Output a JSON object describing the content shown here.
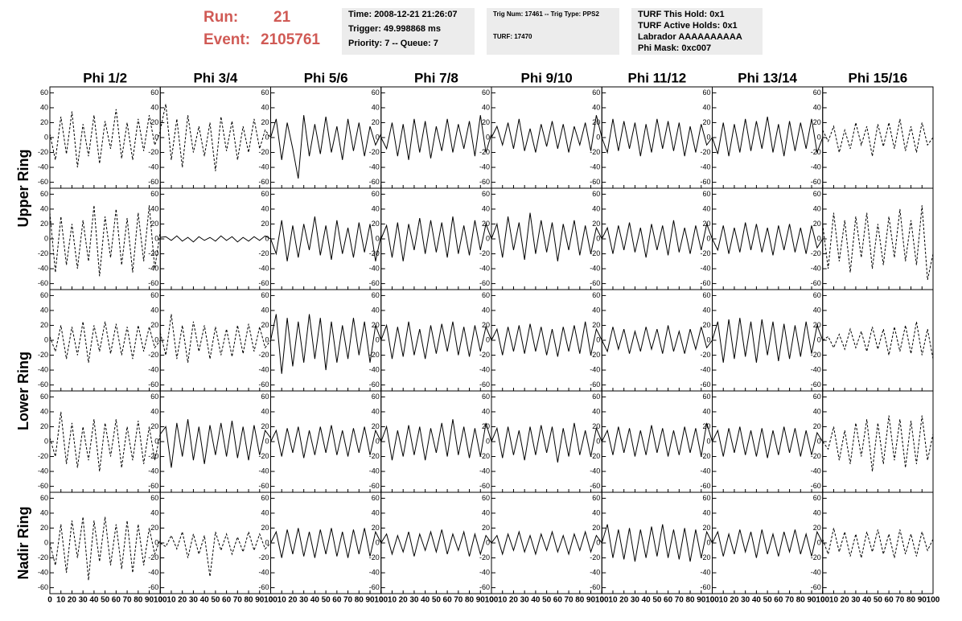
{
  "header": {
    "run_label": "Run:",
    "run": "21",
    "event_label": "Event:",
    "event": "2105761",
    "boxes": [
      [
        "Time: 2008-12-21 21:26:07",
        "Trigger: 49.998868 ms",
        "Priority: 7 -- Queue: 7"
      ],
      [
        "Trig Num: 17461 -- Trig Type: PPS2",
        "TURF: 17470"
      ],
      [
        "TURF This Hold: 0x1",
        "TURF Active Holds: 0x1",
        "Labrador AAAAAAAAAA",
        "Phi Mask: 0xc007"
      ]
    ]
  },
  "chart_data": {
    "type": "line",
    "columns": [
      "Phi 1/2",
      "Phi 3/4",
      "Phi 5/6",
      "Phi 7/8",
      "Phi 9/10",
      "Phi 11/12",
      "Phi 13/14",
      "Phi 15/16"
    ],
    "rows": [
      "Upper Ring",
      "Lower Ring",
      "Nadir Ring"
    ],
    "x": [
      0,
      5,
      10,
      15,
      20,
      25,
      30,
      35,
      40,
      45,
      50,
      55,
      60,
      65,
      70,
      75,
      80,
      85,
      90,
      95,
      100
    ],
    "xlim": [
      0,
      100
    ],
    "xticks": [
      0,
      10,
      20,
      30,
      40,
      50,
      60,
      70,
      80,
      90,
      100
    ],
    "ylim": [
      -68,
      68
    ],
    "yticks": [
      -60,
      -40,
      -20,
      0,
      20,
      40,
      60
    ],
    "panels": [
      [
        {
          "style": "dashed",
          "values": [
            5,
            -30,
            28,
            -22,
            35,
            -40,
            18,
            -25,
            30,
            -35,
            22,
            -15,
            38,
            -28,
            20,
            -30,
            25,
            -18,
            30,
            -10,
            8
          ]
        },
        {
          "style": "dashed",
          "values": [
            10,
            45,
            -30,
            25,
            -40,
            30,
            -20,
            15,
            -25,
            20,
            -45,
            28,
            -18,
            22,
            -30,
            15,
            -20,
            25,
            -15,
            10,
            0
          ]
        },
        {
          "style": "solid",
          "values": [
            0,
            25,
            -30,
            20,
            -15,
            -55,
            30,
            -25,
            18,
            -22,
            28,
            -20,
            15,
            -30,
            25,
            -18,
            20,
            -25,
            15,
            -10,
            5
          ]
        },
        {
          "style": "solid",
          "values": [
            0,
            -15,
            20,
            -25,
            18,
            -30,
            25,
            -20,
            22,
            -28,
            15,
            -18,
            25,
            -20,
            18,
            -15,
            22,
            -25,
            30,
            -20,
            5
          ]
        },
        {
          "style": "solid",
          "values": [
            0,
            15,
            -10,
            20,
            -15,
            25,
            -18,
            12,
            -20,
            18,
            -12,
            22,
            -15,
            18,
            -20,
            15,
            -10,
            20,
            -18,
            30,
            0
          ]
        },
        {
          "style": "solid",
          "values": [
            0,
            -20,
            25,
            -18,
            22,
            -15,
            20,
            -25,
            18,
            -20,
            25,
            -15,
            22,
            -18,
            20,
            -25,
            15,
            -20,
            18,
            -10,
            0
          ]
        },
        {
          "style": "solid",
          "values": [
            0,
            -22,
            20,
            -25,
            18,
            -20,
            25,
            -18,
            22,
            -15,
            28,
            -20,
            18,
            -25,
            22,
            -18,
            20,
            -15,
            25,
            -20,
            0
          ]
        },
        {
          "style": "dashed",
          "values": [
            10,
            -5,
            15,
            -20,
            10,
            -15,
            20,
            -10,
            15,
            -25,
            18,
            -12,
            20,
            -15,
            25,
            -18,
            15,
            -20,
            20,
            -10,
            0
          ]
        }
      ],
      [
        {
          "style": "dashed",
          "values": [
            35,
            -45,
            30,
            -35,
            20,
            -40,
            25,
            -30,
            45,
            -50,
            30,
            -25,
            40,
            -35,
            28,
            -45,
            35,
            -30,
            45,
            -40,
            10
          ]
        },
        {
          "style": "solid",
          "values": [
            2,
            3,
            -2,
            4,
            -3,
            2,
            -4,
            3,
            -2,
            2,
            -3,
            4,
            -2,
            3,
            -4,
            2,
            -3,
            3,
            -2,
            4,
            0
          ]
        },
        {
          "style": "solid",
          "values": [
            0,
            -20,
            25,
            -30,
            18,
            -25,
            20,
            -15,
            30,
            -22,
            18,
            -28,
            25,
            -20,
            15,
            -25,
            22,
            -18,
            20,
            -30,
            5
          ]
        },
        {
          "style": "solid",
          "values": [
            0,
            18,
            -25,
            22,
            -30,
            20,
            -15,
            28,
            -20,
            25,
            -18,
            22,
            -25,
            30,
            -20,
            18,
            -22,
            25,
            -15,
            20,
            0
          ]
        },
        {
          "style": "solid",
          "values": [
            0,
            20,
            -25,
            30,
            -15,
            22,
            -28,
            35,
            -20,
            25,
            -18,
            22,
            -30,
            20,
            -15,
            25,
            -22,
            18,
            -20,
            15,
            0
          ]
        },
        {
          "style": "solid",
          "values": [
            0,
            15,
            -20,
            18,
            -15,
            22,
            -18,
            15,
            -25,
            20,
            -15,
            18,
            -22,
            25,
            -18,
            15,
            -20,
            18,
            -15,
            20,
            0
          ]
        },
        {
          "style": "solid",
          "values": [
            0,
            -15,
            18,
            -20,
            15,
            -18,
            22,
            -15,
            20,
            -18,
            15,
            -22,
            18,
            -15,
            20,
            -18,
            15,
            -20,
            18,
            -12,
            0
          ]
        },
        {
          "style": "dashed",
          "values": [
            20,
            -40,
            35,
            -30,
            25,
            -45,
            30,
            -25,
            35,
            -40,
            20,
            -35,
            30,
            -25,
            40,
            -30,
            25,
            -35,
            45,
            -55,
            -20
          ]
        }
      ],
      [
        {
          "style": "dashed",
          "values": [
            5,
            -15,
            20,
            -25,
            18,
            -20,
            25,
            -30,
            20,
            -15,
            25,
            -18,
            22,
            -20,
            18,
            -25,
            20,
            -15,
            18,
            -10,
            0
          ]
        },
        {
          "style": "dashed",
          "values": [
            10,
            -20,
            35,
            -25,
            20,
            -30,
            25,
            -15,
            20,
            -25,
            18,
            -20,
            15,
            -22,
            20,
            -18,
            22,
            -15,
            18,
            -10,
            0
          ]
        },
        {
          "style": "solid",
          "values": [
            0,
            35,
            -45,
            30,
            -35,
            25,
            -30,
            35,
            -25,
            30,
            -40,
            25,
            -30,
            20,
            -25,
            30,
            -20,
            25,
            -30,
            20,
            0
          ]
        },
        {
          "style": "solid",
          "values": [
            0,
            20,
            -25,
            18,
            -22,
            25,
            -20,
            15,
            -25,
            20,
            -18,
            22,
            -15,
            25,
            -20,
            18,
            -22,
            20,
            -15,
            18,
            0
          ]
        },
        {
          "style": "solid",
          "values": [
            0,
            15,
            -20,
            18,
            -15,
            20,
            -18,
            22,
            -15,
            18,
            -20,
            15,
            -22,
            18,
            -15,
            20,
            -18,
            25,
            -20,
            15,
            0
          ]
        },
        {
          "style": "solid",
          "values": [
            0,
            -15,
            18,
            -12,
            15,
            -18,
            12,
            -15,
            18,
            -12,
            15,
            -18,
            20,
            -15,
            12,
            -18,
            15,
            -12,
            18,
            -10,
            0
          ]
        },
        {
          "style": "solid",
          "values": [
            0,
            25,
            -30,
            28,
            -25,
            30,
            -22,
            25,
            -30,
            28,
            -20,
            25,
            -28,
            22,
            -25,
            20,
            -22,
            25,
            -18,
            20,
            0
          ]
        },
        {
          "style": "dashed",
          "values": [
            0,
            5,
            -10,
            8,
            -12,
            15,
            -10,
            12,
            -15,
            18,
            -12,
            15,
            -20,
            18,
            -15,
            20,
            -18,
            25,
            -20,
            15,
            -25
          ]
        }
      ],
      [
        {
          "style": "dashed",
          "values": [
            5,
            -20,
            40,
            -30,
            25,
            -35,
            20,
            -25,
            30,
            -40,
            25,
            -20,
            30,
            -35,
            20,
            -25,
            28,
            -30,
            20,
            -25,
            10
          ]
        },
        {
          "style": "solid",
          "values": [
            10,
            20,
            -35,
            25,
            -20,
            30,
            -25,
            20,
            -30,
            22,
            -18,
            25,
            -20,
            28,
            -22,
            20,
            -25,
            22,
            -18,
            15,
            5
          ]
        },
        {
          "style": "solid",
          "values": [
            0,
            15,
            -20,
            18,
            -15,
            20,
            -22,
            15,
            -18,
            20,
            -15,
            22,
            -18,
            15,
            -20,
            18,
            -15,
            20,
            -18,
            15,
            0
          ]
        },
        {
          "style": "solid",
          "values": [
            0,
            20,
            -25,
            15,
            -20,
            22,
            -18,
            20,
            -25,
            18,
            -15,
            25,
            -20,
            30,
            -18,
            20,
            -22,
            18,
            -20,
            25,
            0
          ]
        },
        {
          "style": "solid",
          "values": [
            0,
            18,
            -22,
            20,
            -18,
            15,
            -25,
            20,
            -18,
            22,
            -15,
            20,
            -28,
            18,
            -20,
            25,
            -18,
            15,
            -20,
            18,
            0
          ]
        },
        {
          "style": "solid",
          "values": [
            0,
            15,
            -18,
            20,
            -15,
            18,
            -20,
            15,
            -18,
            22,
            -15,
            18,
            -20,
            15,
            -18,
            20,
            -15,
            18,
            -20,
            25,
            0
          ]
        },
        {
          "style": "solid",
          "values": [
            0,
            15,
            -20,
            18,
            -15,
            20,
            -18,
            15,
            -20,
            18,
            -22,
            15,
            -18,
            20,
            -15,
            18,
            -20,
            15,
            -18,
            12,
            0
          ]
        },
        {
          "style": "dashed",
          "values": [
            0,
            -10,
            20,
            -25,
            15,
            -30,
            25,
            -20,
            30,
            -40,
            25,
            -30,
            35,
            -25,
            30,
            -35,
            28,
            -30,
            35,
            -25,
            10
          ]
        }
      ],
      [
        {
          "style": "dashed",
          "values": [
            0,
            -30,
            25,
            -40,
            30,
            -20,
            35,
            -50,
            30,
            -25,
            35,
            -30,
            25,
            -35,
            30,
            -40,
            25,
            -30,
            20,
            -15,
            5
          ]
        },
        {
          "style": "dashed",
          "values": [
            0,
            -5,
            10,
            -8,
            15,
            -20,
            12,
            -15,
            10,
            -45,
            15,
            -10,
            12,
            -15,
            8,
            -12,
            15,
            -10,
            12,
            -8,
            0
          ]
        },
        {
          "style": "solid",
          "values": [
            0,
            15,
            -20,
            18,
            -15,
            20,
            -18,
            15,
            -20,
            18,
            -15,
            20,
            -18,
            15,
            -20,
            18,
            -15,
            20,
            -18,
            15,
            0
          ]
        },
        {
          "style": "solid",
          "values": [
            0,
            12,
            -15,
            10,
            -12,
            15,
            -18,
            12,
            -10,
            15,
            -12,
            18,
            -15,
            12,
            -10,
            15,
            -18,
            12,
            -15,
            10,
            0
          ]
        },
        {
          "style": "solid",
          "values": [
            0,
            10,
            -15,
            12,
            -10,
            15,
            -12,
            10,
            -15,
            12,
            -10,
            15,
            -12,
            10,
            -15,
            12,
            -10,
            15,
            -12,
            10,
            0
          ]
        },
        {
          "style": "solid",
          "values": [
            0,
            25,
            -20,
            18,
            -22,
            20,
            -25,
            18,
            -20,
            22,
            -18,
            25,
            -20,
            18,
            -22,
            20,
            -25,
            18,
            -20,
            15,
            0
          ]
        },
        {
          "style": "solid",
          "values": [
            0,
            15,
            -18,
            12,
            -15,
            18,
            -12,
            15,
            -20,
            18,
            -15,
            12,
            -18,
            15,
            -12,
            18,
            -15,
            12,
            -18,
            15,
            0
          ]
        },
        {
          "style": "dashed",
          "values": [
            5,
            -15,
            20,
            -12,
            15,
            -18,
            12,
            -20,
            15,
            -12,
            18,
            -15,
            12,
            -20,
            18,
            -15,
            12,
            -18,
            15,
            -10,
            5
          ]
        }
      ]
    ]
  }
}
